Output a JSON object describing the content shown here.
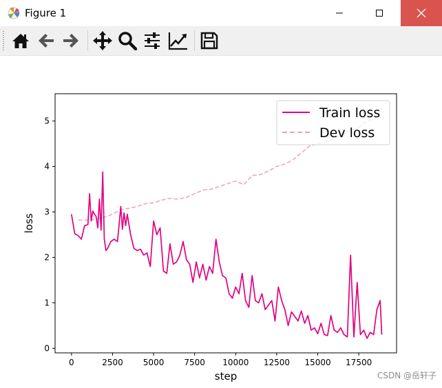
{
  "window": {
    "title": "Figure 1",
    "icons": {
      "app": "matplotlib-logo-icon",
      "minimize": "minimize-icon",
      "maximize": "maximize-icon",
      "close": "close-icon"
    }
  },
  "toolbar": {
    "buttons": [
      "home-icon",
      "back-arrow-icon",
      "forward-arrow-icon",
      "pan-icon",
      "zoom-icon",
      "configure-subplots-icon",
      "edit-axes-icon",
      "save-icon"
    ]
  },
  "chart_data": {
    "type": "line",
    "xlabel": "step",
    "ylabel": "loss",
    "xlim": [
      -1000,
      19800
    ],
    "ylim": [
      -0.1,
      5.6
    ],
    "xticks": [
      0,
      2500,
      5000,
      7500,
      10000,
      12500,
      15000,
      17500
    ],
    "yticks": [
      0,
      1,
      2,
      3,
      4,
      5
    ],
    "legend_position": "upper right",
    "grid": false,
    "series": [
      {
        "name": "Train loss",
        "color": "#e0007f",
        "style": "solid",
        "x": [
          0,
          200,
          400,
          600,
          800,
          1000,
          1100,
          1200,
          1300,
          1400,
          1500,
          1600,
          1700,
          1800,
          1900,
          2000,
          2100,
          2200,
          2400,
          2600,
          2800,
          2900,
          3000,
          3100,
          3200,
          3300,
          3400,
          3600,
          3800,
          4000,
          4200,
          4400,
          4600,
          4800,
          5000,
          5200,
          5400,
          5600,
          5800,
          6000,
          6200,
          6400,
          6600,
          6800,
          7000,
          7200,
          7400,
          7600,
          7800,
          8000,
          8200,
          8400,
          8600,
          8800,
          9000,
          9200,
          9400,
          9600,
          9800,
          10000,
          10200,
          10400,
          10600,
          10800,
          11000,
          11200,
          11400,
          11600,
          11800,
          12000,
          12200,
          12400,
          12600,
          12800,
          13000,
          13200,
          13400,
          13600,
          13800,
          14000,
          14200,
          14400,
          14600,
          14800,
          15000,
          15200,
          15400,
          15600,
          15800,
          16000,
          16200,
          16400,
          16600,
          16800,
          17000,
          17200,
          17400,
          17600,
          17800,
          18000,
          18200,
          18400,
          18600,
          18800,
          18900
        ],
        "y": [
          2.95,
          2.52,
          2.48,
          2.4,
          2.7,
          2.72,
          3.4,
          2.8,
          3.02,
          2.95,
          2.9,
          2.65,
          3.28,
          2.6,
          3.88,
          2.4,
          2.15,
          2.2,
          2.35,
          2.4,
          2.35,
          2.72,
          3.12,
          2.62,
          2.98,
          2.7,
          2.95,
          2.5,
          2.2,
          2.15,
          2.18,
          2.05,
          2.1,
          1.8,
          2.8,
          2.5,
          2.65,
          1.7,
          1.65,
          2.3,
          1.85,
          1.9,
          2.05,
          2.35,
          1.95,
          1.85,
          1.45,
          1.9,
          1.55,
          1.85,
          1.5,
          1.8,
          1.65,
          2.4,
          1.9,
          1.6,
          1.55,
          1.2,
          1.1,
          1.35,
          1.2,
          1.65,
          1.05,
          0.9,
          1.6,
          1.05,
          1.0,
          1.2,
          0.85,
          0.95,
          1.05,
          0.6,
          1.35,
          1.05,
          0.85,
          0.5,
          0.8,
          0.7,
          0.6,
          0.82,
          0.55,
          0.72,
          0.4,
          0.45,
          0.32,
          0.55,
          0.3,
          0.28,
          0.72,
          0.4,
          0.35,
          0.45,
          0.3,
          0.25,
          2.05,
          0.25,
          1.45,
          0.3,
          0.4,
          0.22,
          0.35,
          0.3,
          0.85,
          1.05,
          0.3
        ]
      },
      {
        "name": "Dev loss",
        "color": "#eaa0c2",
        "style": "dashed",
        "x": [
          400,
          1000,
          1500,
          2000,
          2500,
          3000,
          3500,
          4000,
          4500,
          5000,
          5500,
          6000,
          6500,
          7000,
          7500,
          8000,
          8500,
          9000,
          9500,
          10000,
          10500,
          11000,
          11500,
          12000,
          12500,
          13000,
          13500,
          14000,
          14500,
          15000,
          15500,
          16000,
          16500,
          17000,
          17500,
          18000,
          18500,
          18900
        ],
        "y": [
          2.82,
          2.82,
          2.84,
          2.88,
          2.95,
          3.05,
          3.08,
          3.12,
          3.18,
          3.2,
          3.26,
          3.3,
          3.28,
          3.32,
          3.4,
          3.48,
          3.5,
          3.56,
          3.62,
          3.68,
          3.6,
          3.8,
          3.82,
          3.9,
          4.0,
          4.05,
          4.15,
          4.3,
          4.45,
          4.5,
          4.55,
          4.6,
          4.7,
          4.8,
          4.85,
          5.0,
          5.05,
          5.3
        ]
      }
    ]
  },
  "watermark": "CSDN @岳轩子"
}
